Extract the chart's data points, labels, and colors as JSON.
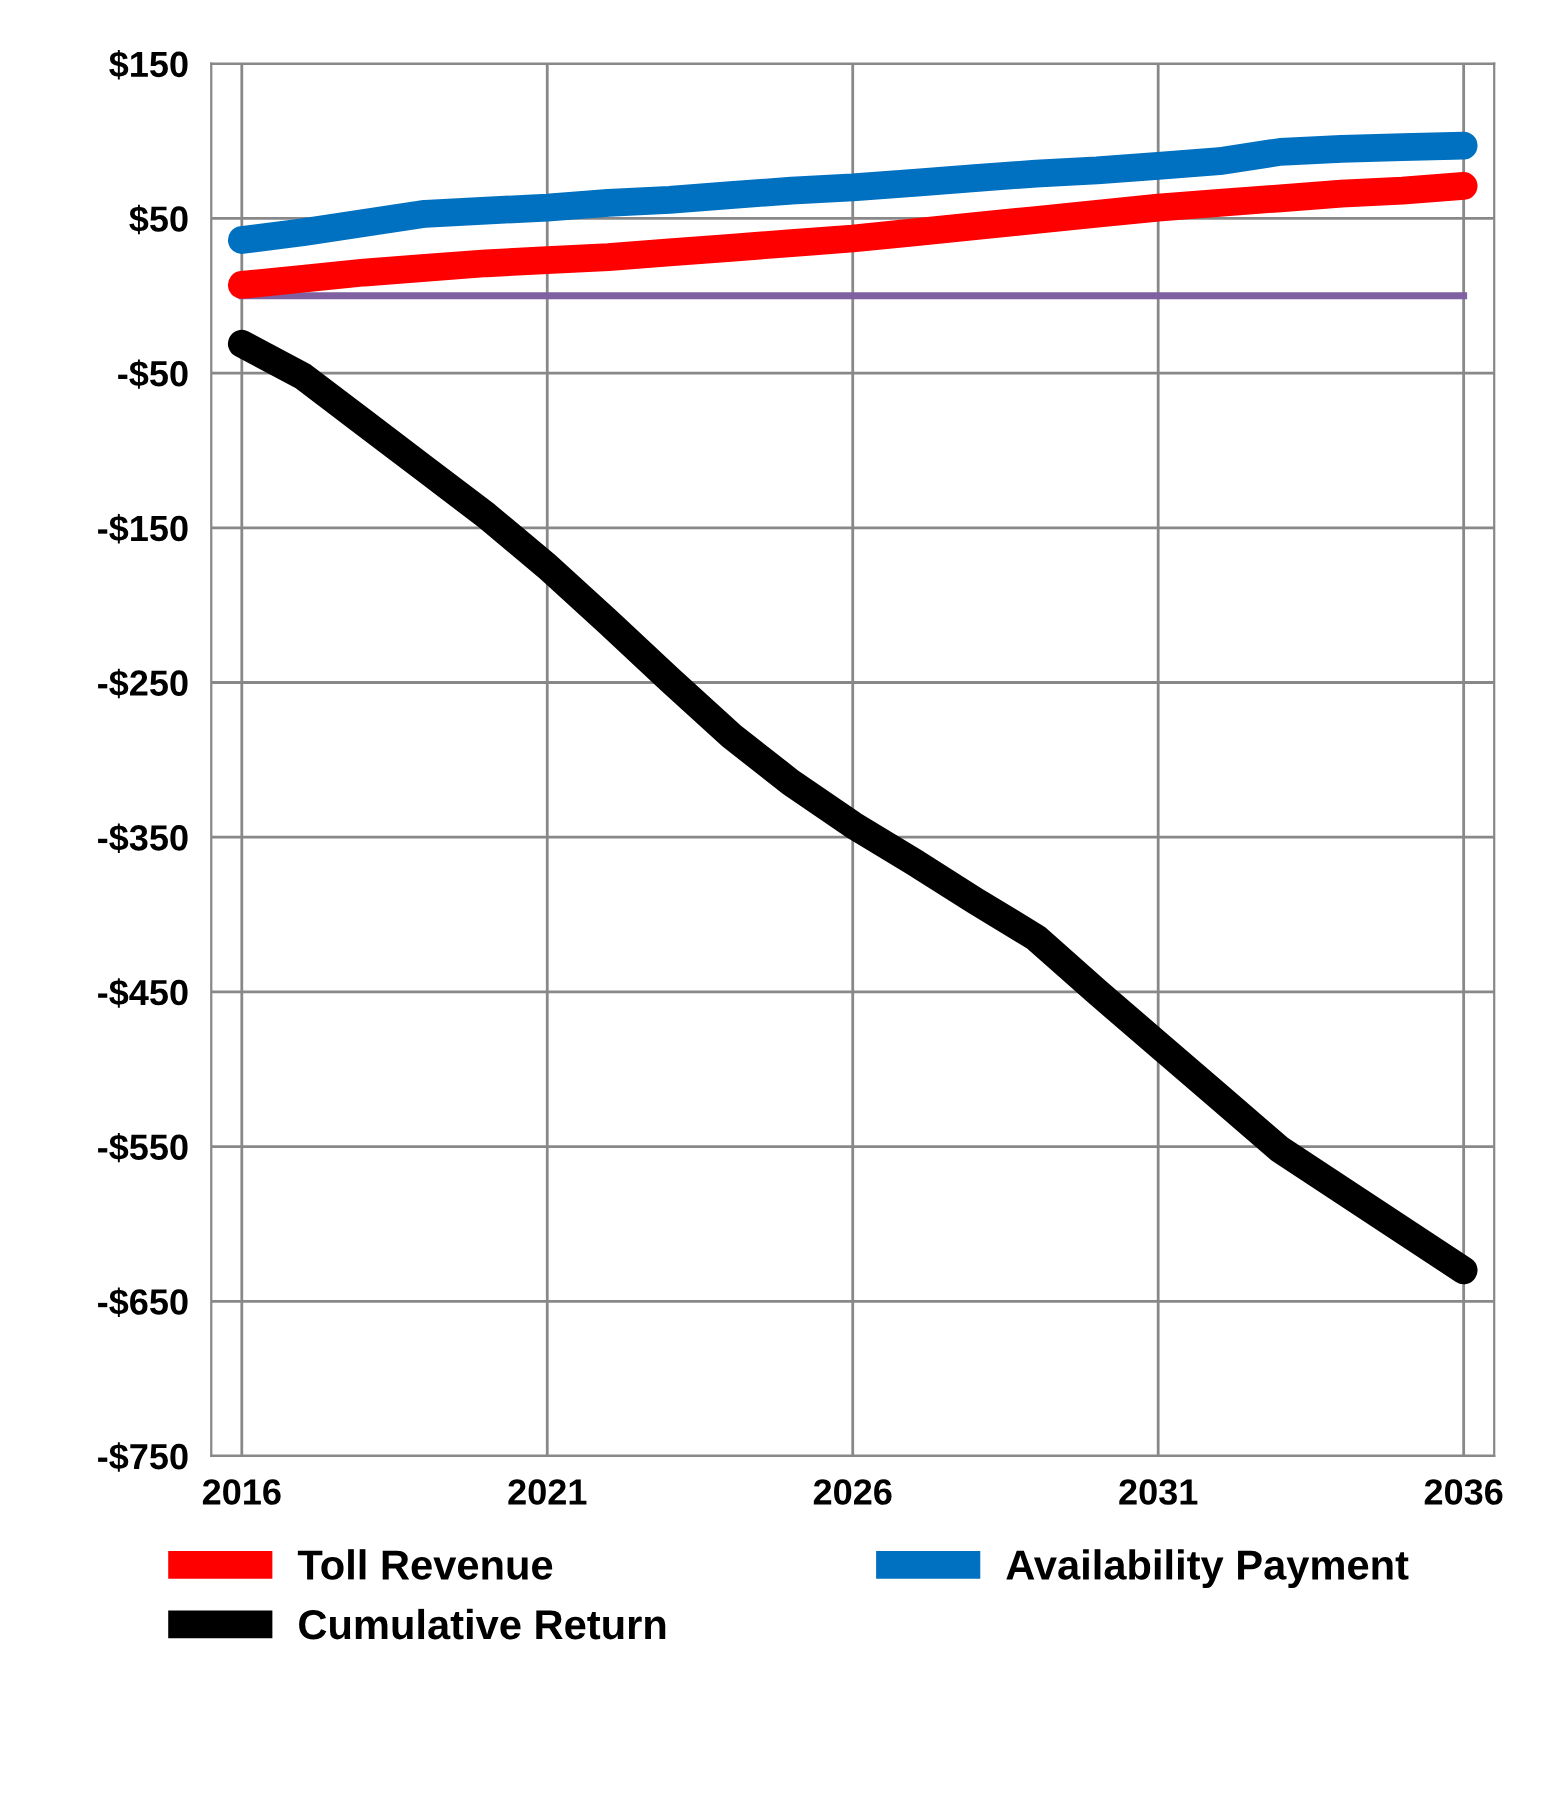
{
  "chart_data": {
    "type": "line",
    "x": [
      2016,
      2017,
      2018,
      2019,
      2020,
      2021,
      2022,
      2023,
      2024,
      2025,
      2026,
      2027,
      2028,
      2029,
      2030,
      2031,
      2032,
      2033,
      2034,
      2035,
      2036
    ],
    "series": [
      {
        "name": "Toll Revenue",
        "color": "#ff0000",
        "values": [
          7,
          11,
          15,
          18,
          21,
          23,
          25,
          28,
          31,
          34,
          37,
          41,
          45,
          49,
          53,
          57,
          60,
          63,
          66,
          68,
          71
        ]
      },
      {
        "name": "Availability Payment",
        "color": "#0070c0",
        "values": [
          36,
          41,
          47,
          53,
          55,
          57,
          60,
          62,
          65,
          68,
          70,
          73,
          76,
          79,
          81,
          84,
          87,
          93,
          95,
          96,
          97
        ]
      },
      {
        "name": "Cumulative Return",
        "color": "#000000",
        "values": [
          -31,
          -52,
          -82,
          -112,
          -142,
          -175,
          -211,
          -248,
          -284,
          -315,
          -342,
          -366,
          -391,
          -415,
          -450,
          -484,
          -518,
          -552,
          -578,
          -604,
          -630
        ]
      }
    ],
    "xlim": [
      2015.5,
      2036.5
    ],
    "xticks": [
      2016,
      2021,
      2026,
      2031,
      2036
    ],
    "ylim": [
      -750,
      150
    ],
    "yticks": [
      {
        "value": 150,
        "label": "$150"
      },
      {
        "value": 50,
        "label": "$50"
      },
      {
        "value": -50,
        "label": "-$50"
      },
      {
        "value": -150,
        "label": "-$150"
      },
      {
        "value": -250,
        "label": "-$250"
      },
      {
        "value": -350,
        "label": "-$350"
      },
      {
        "value": -450,
        "label": "-$450"
      },
      {
        "value": -550,
        "label": "-$550"
      },
      {
        "value": -650,
        "label": "-$650"
      },
      {
        "value": -750,
        "label": "-$750"
      }
    ],
    "ref_lines": [
      {
        "axis": "y",
        "value": 0,
        "label": null,
        "color": "#7f60a0"
      }
    ],
    "grid": true,
    "legend": "bottom",
    "line_style": "solid"
  }
}
